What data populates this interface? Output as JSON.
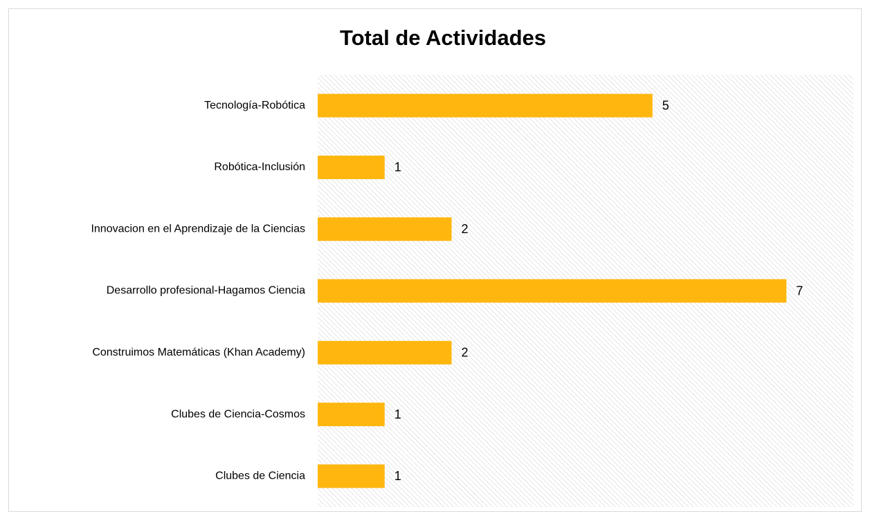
{
  "chart_data": {
    "type": "bar",
    "orientation": "horizontal",
    "title": "Total de Actividades",
    "categories": [
      "Tecnología-Robótica",
      "Robótica-Inclusión",
      "Innovacion en el Aprendizaje de la Ciencias",
      "Desarrollo profesional-Hagamos Ciencia",
      "Construimos Matemáticas (Khan Academy)",
      "Clubes de Ciencia-Cosmos",
      "Clubes de Ciencia"
    ],
    "values": [
      5,
      1,
      2,
      7,
      2,
      1,
      1
    ],
    "color": "#ffb70f",
    "xlim": [
      0,
      8
    ]
  }
}
